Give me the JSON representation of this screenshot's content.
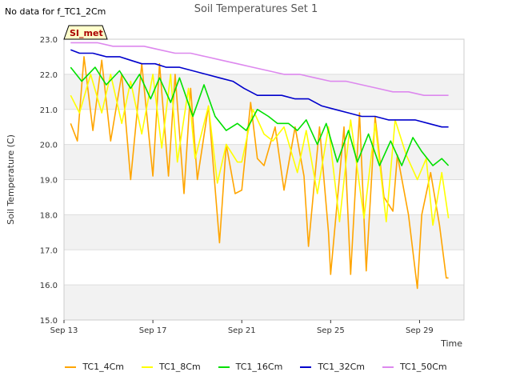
{
  "note": "No data for f_TC1_2Cm",
  "chart_data": {
    "type": "line",
    "title": "Soil Temperatures Set 1",
    "xlabel": "Time",
    "ylabel": "Soil Temperature (C)",
    "ylim": [
      15.0,
      23.0
    ],
    "xlim_days": [
      13,
      31
    ],
    "yticks": [
      "15.0",
      "16.0",
      "17.0",
      "18.0",
      "19.0",
      "20.0",
      "21.0",
      "22.0",
      "23.0"
    ],
    "xticks": [
      {
        "day": 13,
        "label": "Sep 13"
      },
      {
        "day": 17,
        "label": "Sep 17"
      },
      {
        "day": 21,
        "label": "Sep 21"
      },
      {
        "day": 25,
        "label": "Sep 25"
      },
      {
        "day": 29,
        "label": "Sep 29"
      }
    ],
    "badge": "SI_met",
    "grid": true,
    "legend_position": "bottom",
    "series": [
      {
        "name": "TC1_4Cm",
        "color": "#ffa500",
        "x": [
          13.3,
          13.6,
          13.9,
          14.3,
          14.7,
          15.1,
          15.6,
          16.0,
          16.5,
          17.0,
          17.3,
          17.7,
          18.0,
          18.4,
          18.7,
          19.0,
          19.5,
          20.0,
          20.3,
          20.7,
          21.0,
          21.4,
          21.7,
          22.0,
          22.5,
          22.9,
          23.4,
          23.8,
          24.0,
          24.5,
          24.9,
          25.0,
          25.6,
          25.9,
          26.3,
          26.6,
          27.0,
          27.4,
          27.8,
          28.0,
          28.5,
          28.9,
          29.1,
          29.5,
          29.9,
          30.2,
          30.3
        ],
        "y": [
          20.6,
          20.1,
          22.5,
          20.4,
          22.4,
          20.1,
          22.0,
          19.0,
          22.3,
          19.1,
          22.3,
          19.1,
          22.0,
          18.6,
          21.6,
          19.0,
          21.1,
          17.2,
          20.0,
          18.6,
          18.7,
          21.2,
          19.6,
          19.4,
          20.5,
          18.7,
          20.5,
          19.1,
          17.1,
          20.5,
          17.5,
          16.3,
          20.5,
          16.3,
          20.9,
          16.4,
          20.8,
          18.5,
          18.1,
          19.7,
          18.0,
          15.9,
          18.0,
          19.2,
          17.7,
          16.2,
          16.2
        ]
      },
      {
        "name": "TC1_8Cm",
        "color": "#ffff00",
        "x": [
          13.3,
          13.7,
          14.2,
          14.7,
          15.1,
          15.6,
          16.0,
          16.5,
          17.0,
          17.4,
          17.8,
          18.1,
          18.6,
          18.9,
          19.5,
          19.9,
          20.3,
          20.8,
          21.0,
          21.5,
          22.0,
          22.4,
          22.9,
          23.5,
          23.9,
          24.4,
          24.9,
          25.4,
          25.9,
          26.5,
          27.0,
          27.5,
          27.9,
          28.4,
          28.9,
          29.3,
          29.6,
          30.0,
          30.3
        ],
        "y": [
          21.4,
          20.9,
          22.0,
          20.9,
          22.0,
          20.6,
          21.8,
          20.3,
          22.0,
          19.9,
          22.0,
          19.5,
          21.6,
          19.6,
          21.1,
          18.9,
          20.0,
          19.5,
          19.5,
          21.0,
          20.3,
          20.1,
          20.5,
          19.2,
          20.4,
          18.6,
          20.5,
          17.8,
          20.7,
          17.9,
          20.6,
          17.8,
          20.7,
          19.7,
          19.0,
          19.6,
          17.7,
          19.2,
          17.9
        ]
      },
      {
        "name": "TC1_16Cm",
        "color": "#00e000",
        "x": [
          13.3,
          13.8,
          14.4,
          14.9,
          15.5,
          16.0,
          16.4,
          16.9,
          17.3,
          17.8,
          18.2,
          18.8,
          19.3,
          19.8,
          20.3,
          20.8,
          21.2,
          21.7,
          22.2,
          22.6,
          23.1,
          23.5,
          23.9,
          24.4,
          24.8,
          25.3,
          25.8,
          26.2,
          26.7,
          27.2,
          27.7,
          28.2,
          28.7,
          29.1,
          29.6,
          30.0,
          30.3
        ],
        "y": [
          22.2,
          21.8,
          22.2,
          21.7,
          22.1,
          21.6,
          22.0,
          21.3,
          21.9,
          21.2,
          21.9,
          20.8,
          21.7,
          20.8,
          20.4,
          20.6,
          20.4,
          21.0,
          20.8,
          20.6,
          20.6,
          20.4,
          20.7,
          20.0,
          20.6,
          19.5,
          20.4,
          19.5,
          20.3,
          19.4,
          20.1,
          19.4,
          20.2,
          19.8,
          19.4,
          19.6,
          19.4
        ]
      },
      {
        "name": "TC1_32Cm",
        "color": "#0000cc",
        "x": [
          13.3,
          13.7,
          14.3,
          14.9,
          15.5,
          16.0,
          16.5,
          17.1,
          17.6,
          18.2,
          18.8,
          19.4,
          20.0,
          20.6,
          21.1,
          21.7,
          22.2,
          22.8,
          23.4,
          24.0,
          24.6,
          25.2,
          25.8,
          26.4,
          27.0,
          27.6,
          28.2,
          28.8,
          29.4,
          30.0,
          30.3
        ],
        "y": [
          22.7,
          22.6,
          22.6,
          22.5,
          22.5,
          22.4,
          22.3,
          22.3,
          22.2,
          22.2,
          22.1,
          22.0,
          21.9,
          21.8,
          21.6,
          21.4,
          21.4,
          21.4,
          21.3,
          21.3,
          21.1,
          21.0,
          20.9,
          20.8,
          20.8,
          20.7,
          20.7,
          20.7,
          20.6,
          20.5,
          20.5
        ]
      },
      {
        "name": "TC1_50Cm",
        "color": "#dd88ee",
        "x": [
          13.3,
          13.8,
          14.5,
          15.2,
          15.9,
          16.6,
          17.3,
          18.0,
          18.7,
          19.4,
          20.1,
          20.8,
          21.5,
          22.2,
          22.9,
          23.6,
          24.3,
          25.0,
          25.7,
          26.4,
          27.1,
          27.8,
          28.5,
          29.2,
          29.9,
          30.3
        ],
        "y": [
          22.9,
          22.9,
          22.9,
          22.8,
          22.8,
          22.8,
          22.7,
          22.6,
          22.6,
          22.5,
          22.4,
          22.3,
          22.2,
          22.1,
          22.0,
          22.0,
          21.9,
          21.8,
          21.8,
          21.7,
          21.6,
          21.5,
          21.5,
          21.4,
          21.4,
          21.4
        ]
      }
    ]
  }
}
